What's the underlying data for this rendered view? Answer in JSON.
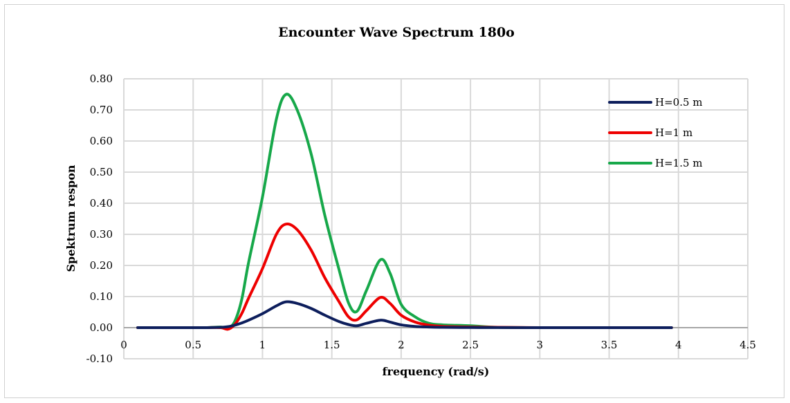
{
  "chart_data": {
    "type": "line",
    "title": "Encounter Wave Spectrum 180o",
    "xlabel": "frequency (rad/s)",
    "ylabel": "Spektrum respon",
    "xlim": [
      0,
      4.5
    ],
    "ylim": [
      -0.1,
      0.8
    ],
    "xticks": [
      "0",
      "0.5",
      "1",
      "1.5",
      "2",
      "2.5",
      "3",
      "3.5",
      "4",
      "4.5"
    ],
    "yticks": [
      "-0.10",
      "0.00",
      "0.10",
      "0.20",
      "0.30",
      "0.40",
      "0.50",
      "0.60",
      "0.70",
      "0.80"
    ],
    "grid": true,
    "legend_position": "top-right",
    "x": [
      0.1,
      0.3,
      0.5,
      0.6,
      0.7,
      0.75,
      0.8,
      0.85,
      0.9,
      1.0,
      1.1,
      1.17,
      1.25,
      1.35,
      1.45,
      1.55,
      1.62,
      1.68,
      1.75,
      1.85,
      1.92,
      2.0,
      2.1,
      2.2,
      2.3,
      2.5,
      2.7,
      3.0,
      3.5,
      3.95
    ],
    "series": [
      {
        "name": "H=0.5 m",
        "color": "#0d1e5c",
        "values": [
          0,
          0,
          0,
          0,
          0.001,
          0.003,
          0.008,
          0.015,
          0.024,
          0.045,
          0.07,
          0.083,
          0.078,
          0.062,
          0.04,
          0.02,
          0.01,
          0.006,
          0.014,
          0.024,
          0.018,
          0.009,
          0.004,
          0.002,
          0.001,
          0.0005,
          0.0002,
          0,
          0,
          0
        ]
      },
      {
        "name": "H=1 m",
        "color": "#ee0000",
        "values": [
          0,
          0,
          0,
          0,
          0.0,
          -0.005,
          0.01,
          0.045,
          0.095,
          0.19,
          0.3,
          0.333,
          0.315,
          0.25,
          0.16,
          0.085,
          0.035,
          0.025,
          0.055,
          0.097,
          0.078,
          0.04,
          0.018,
          0.008,
          0.004,
          0.002,
          0.001,
          0,
          0,
          0
        ]
      },
      {
        "name": "H=1.5 m",
        "color": "#17a84a",
        "values": [
          0,
          0,
          0,
          0,
          0.002,
          -0.002,
          0.02,
          0.09,
          0.21,
          0.42,
          0.67,
          0.75,
          0.7,
          0.56,
          0.36,
          0.19,
          0.08,
          0.052,
          0.12,
          0.218,
          0.175,
          0.075,
          0.035,
          0.014,
          0.009,
          0.006,
          0.001,
          0,
          0,
          0
        ]
      }
    ]
  }
}
